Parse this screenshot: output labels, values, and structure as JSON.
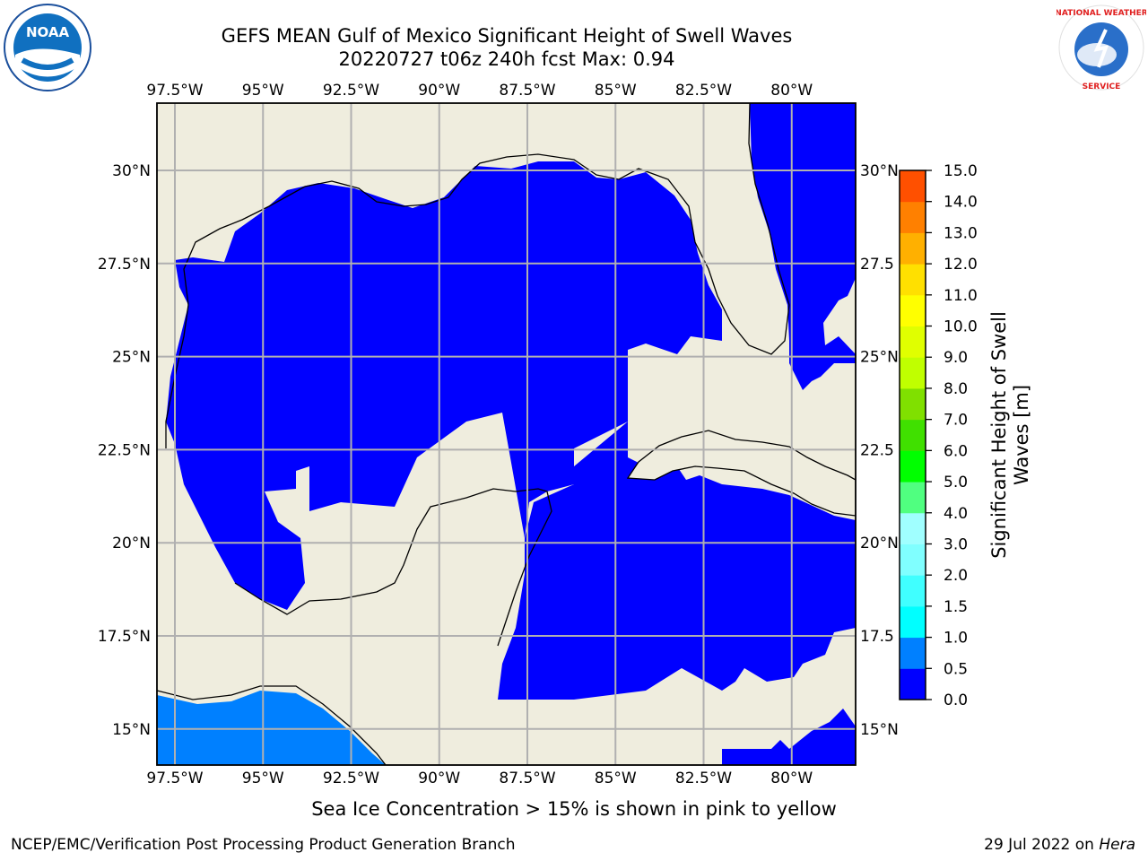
{
  "title": {
    "line1": "GEFS MEAN Gulf of Mexico Significant Height of Swell Waves",
    "line2": "20220727 t06z 240h fcst   Max: 0.94"
  },
  "logos": {
    "left": {
      "name": "noaa-logo",
      "text": "NOAA"
    },
    "right": {
      "name": "nws-logo",
      "text": "NATIONAL WEATHER SERVICE"
    }
  },
  "map": {
    "lon_labels": [
      "97.5°W",
      "95°W",
      "92.5°W",
      "90°W",
      "87.5°W",
      "85°W",
      "82.5°W",
      "80°W"
    ],
    "lat_labels_left": [
      "30°N",
      "27.5°N",
      "25°N",
      "22.5°N",
      "20°N",
      "17.5°N",
      "15°N"
    ],
    "lat_labels_right": [
      "30°N",
      "27.5",
      "25°N",
      "22.5",
      "20°N",
      "17.5",
      "15°N"
    ],
    "colors": {
      "land": "#efedde",
      "swell_0_0_5": "#0000ff",
      "swell_0_5_1_0": "#0080ff",
      "grid": "#b0b0b0"
    }
  },
  "colorbar": {
    "ticks": [
      "15.0",
      "14.0",
      "13.0",
      "12.0",
      "11.0",
      "10.0",
      "9.0",
      "8.0",
      "7.0",
      "6.0",
      "5.0",
      "4.0",
      "3.0",
      "2.0",
      "1.5",
      "1.0",
      "0.5",
      "0.0"
    ],
    "colors": [
      "#0000ff",
      "#0080ff",
      "#00ffff",
      "#40ffff",
      "#80ffff",
      "#a0ffff",
      "#50ff80",
      "#00ff00",
      "#40e000",
      "#80e000",
      "#c0ff00",
      "#e0ff00",
      "#ffff00",
      "#ffe000",
      "#ffb000",
      "#ff8000",
      "#ff5000",
      "#ff2000",
      "#ff0000"
    ],
    "label_line1": "Significant Height of Swell",
    "label_line2": "Waves [m]"
  },
  "footnote": "Sea Ice Concentration > 15% is shown in pink to yellow",
  "credit": "NCEP/EMC/Verification Post Processing Product Generation Branch",
  "date_prefix": "29 Jul 2022 on ",
  "date_host": "Hera"
}
